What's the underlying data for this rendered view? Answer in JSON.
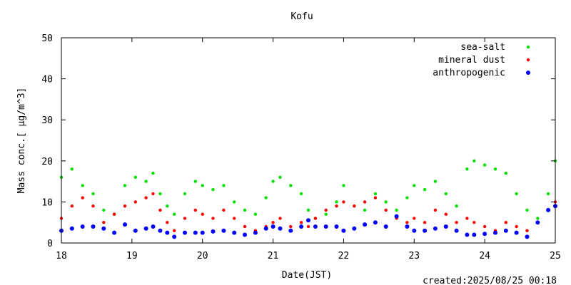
{
  "chart_data": {
    "type": "scatter",
    "title": "Kofu",
    "xlabel": "Date(JST)",
    "ylabel": "Mass conc.[ μg/m^3]",
    "xlim": [
      18,
      25
    ],
    "ylim": [
      0,
      50
    ],
    "x_ticks": [
      18,
      19,
      20,
      21,
      22,
      23,
      24,
      25
    ],
    "x_tick_labels": [
      "18",
      "19",
      "20",
      "21",
      "22",
      "23",
      "24",
      "25"
    ],
    "y_ticks": [
      0,
      10,
      20,
      30,
      40,
      50
    ],
    "y_tick_labels": [
      "0",
      "10",
      "20",
      "30",
      "40",
      "50"
    ],
    "legend_position": "top-right",
    "grid": false,
    "footer": "created:2025/08/25 00:18",
    "series": [
      {
        "name": "sea-salt",
        "color": "#00e000",
        "x": [
          18.0,
          18.15,
          18.3,
          18.45,
          18.6,
          18.75,
          18.9,
          19.05,
          19.2,
          19.3,
          19.4,
          19.5,
          19.6,
          19.75,
          19.9,
          20.0,
          20.15,
          20.3,
          20.45,
          20.6,
          20.75,
          20.9,
          21.0,
          21.1,
          21.25,
          21.4,
          21.5,
          21.6,
          21.75,
          21.9,
          22.0,
          22.15,
          22.3,
          22.45,
          22.6,
          22.75,
          22.9,
          23.0,
          23.15,
          23.3,
          23.45,
          23.6,
          23.75,
          23.85,
          24.0,
          24.15,
          24.3,
          24.45,
          24.6,
          24.75,
          24.9,
          25.0
        ],
        "values": [
          16,
          18,
          14,
          12,
          8,
          7,
          14,
          16,
          15,
          17,
          12,
          9,
          7,
          12,
          15,
          14,
          13,
          14,
          10,
          8,
          7,
          11,
          15,
          16,
          14,
          12,
          8,
          6,
          7,
          10,
          14,
          9,
          8,
          12,
          10,
          8,
          11,
          14,
          13,
          15,
          12,
          9,
          18,
          20,
          19,
          18,
          17,
          12,
          8,
          6,
          12,
          20
        ]
      },
      {
        "name": "mineral dust",
        "color": "#ff0000",
        "x": [
          18.0,
          18.15,
          18.3,
          18.45,
          18.6,
          18.75,
          18.9,
          19.05,
          19.2,
          19.3,
          19.4,
          19.5,
          19.6,
          19.75,
          19.9,
          20.0,
          20.15,
          20.3,
          20.45,
          20.6,
          20.75,
          20.9,
          21.0,
          21.1,
          21.25,
          21.4,
          21.5,
          21.6,
          21.75,
          21.9,
          22.0,
          22.15,
          22.3,
          22.45,
          22.6,
          22.75,
          22.9,
          23.0,
          23.15,
          23.3,
          23.45,
          23.6,
          23.75,
          23.85,
          24.0,
          24.15,
          24.3,
          24.45,
          24.6,
          24.75,
          24.9,
          25.0
        ],
        "values": [
          6,
          9,
          11,
          9,
          5,
          7,
          9,
          10,
          11,
          12,
          8,
          5,
          3,
          6,
          8,
          7,
          6,
          8,
          6,
          4,
          3,
          4,
          5,
          6,
          4,
          5,
          4,
          6,
          8,
          9,
          10,
          9,
          10,
          11,
          8,
          6,
          5,
          6,
          5,
          8,
          7,
          5,
          6,
          5,
          4,
          3,
          5,
          4,
          3,
          5,
          8,
          10
        ]
      },
      {
        "name": "anthropogenic",
        "color": "#0000ff",
        "x": [
          18.0,
          18.15,
          18.3,
          18.45,
          18.6,
          18.75,
          18.9,
          19.05,
          19.2,
          19.3,
          19.4,
          19.5,
          19.6,
          19.75,
          19.9,
          20.0,
          20.15,
          20.3,
          20.45,
          20.6,
          20.75,
          20.9,
          21.0,
          21.1,
          21.25,
          21.4,
          21.5,
          21.6,
          21.75,
          21.9,
          22.0,
          22.15,
          22.3,
          22.45,
          22.6,
          22.75,
          22.9,
          23.0,
          23.15,
          23.3,
          23.45,
          23.6,
          23.75,
          23.85,
          24.0,
          24.15,
          24.3,
          24.45,
          24.6,
          24.75,
          24.9,
          25.0
        ],
        "values": [
          3,
          3.5,
          4,
          4,
          3.5,
          2.5,
          4.5,
          3,
          3.5,
          4,
          3,
          2.5,
          1.5,
          2.5,
          2.5,
          2.5,
          2.8,
          3,
          2.5,
          2,
          2.5,
          3.5,
          4,
          3.5,
          3,
          4,
          5.5,
          4,
          4,
          4,
          3,
          3.5,
          4.5,
          5,
          4,
          6.5,
          4,
          3,
          3,
          3.5,
          4,
          3,
          2,
          2,
          2.2,
          2.5,
          3,
          2.5,
          1.5,
          5,
          8,
          9
        ]
      }
    ]
  }
}
